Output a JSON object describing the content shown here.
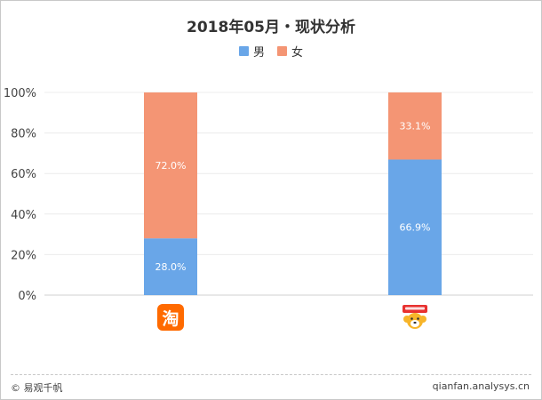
{
  "title": "2018年05月・现状分析",
  "colors": {
    "male": "#69a6e8",
    "female": "#f49574"
  },
  "legend": [
    {
      "label": "男"
    },
    {
      "label": "女"
    }
  ],
  "chart_data": {
    "type": "bar",
    "stacked": true,
    "categories": [
      "淘宝",
      "苏宁易购"
    ],
    "series": [
      {
        "name": "男",
        "values": [
          28.0,
          66.9
        ],
        "labels": [
          "28.0%",
          "66.9%"
        ]
      },
      {
        "name": "女",
        "values": [
          72.0,
          33.1
        ],
        "labels": [
          "72.0%",
          "33.1%"
        ]
      }
    ],
    "ylim": [
      0,
      100
    ],
    "yticks": [
      "0%",
      "20%",
      "40%",
      "60%",
      "80%",
      "100%"
    ],
    "legend_position": "top-center",
    "grid": true
  },
  "icons": [
    "taobao-icon",
    "suning-icon"
  ],
  "footer": {
    "left": "© 易观千帆",
    "right": "qianfan.analysys.cn"
  }
}
